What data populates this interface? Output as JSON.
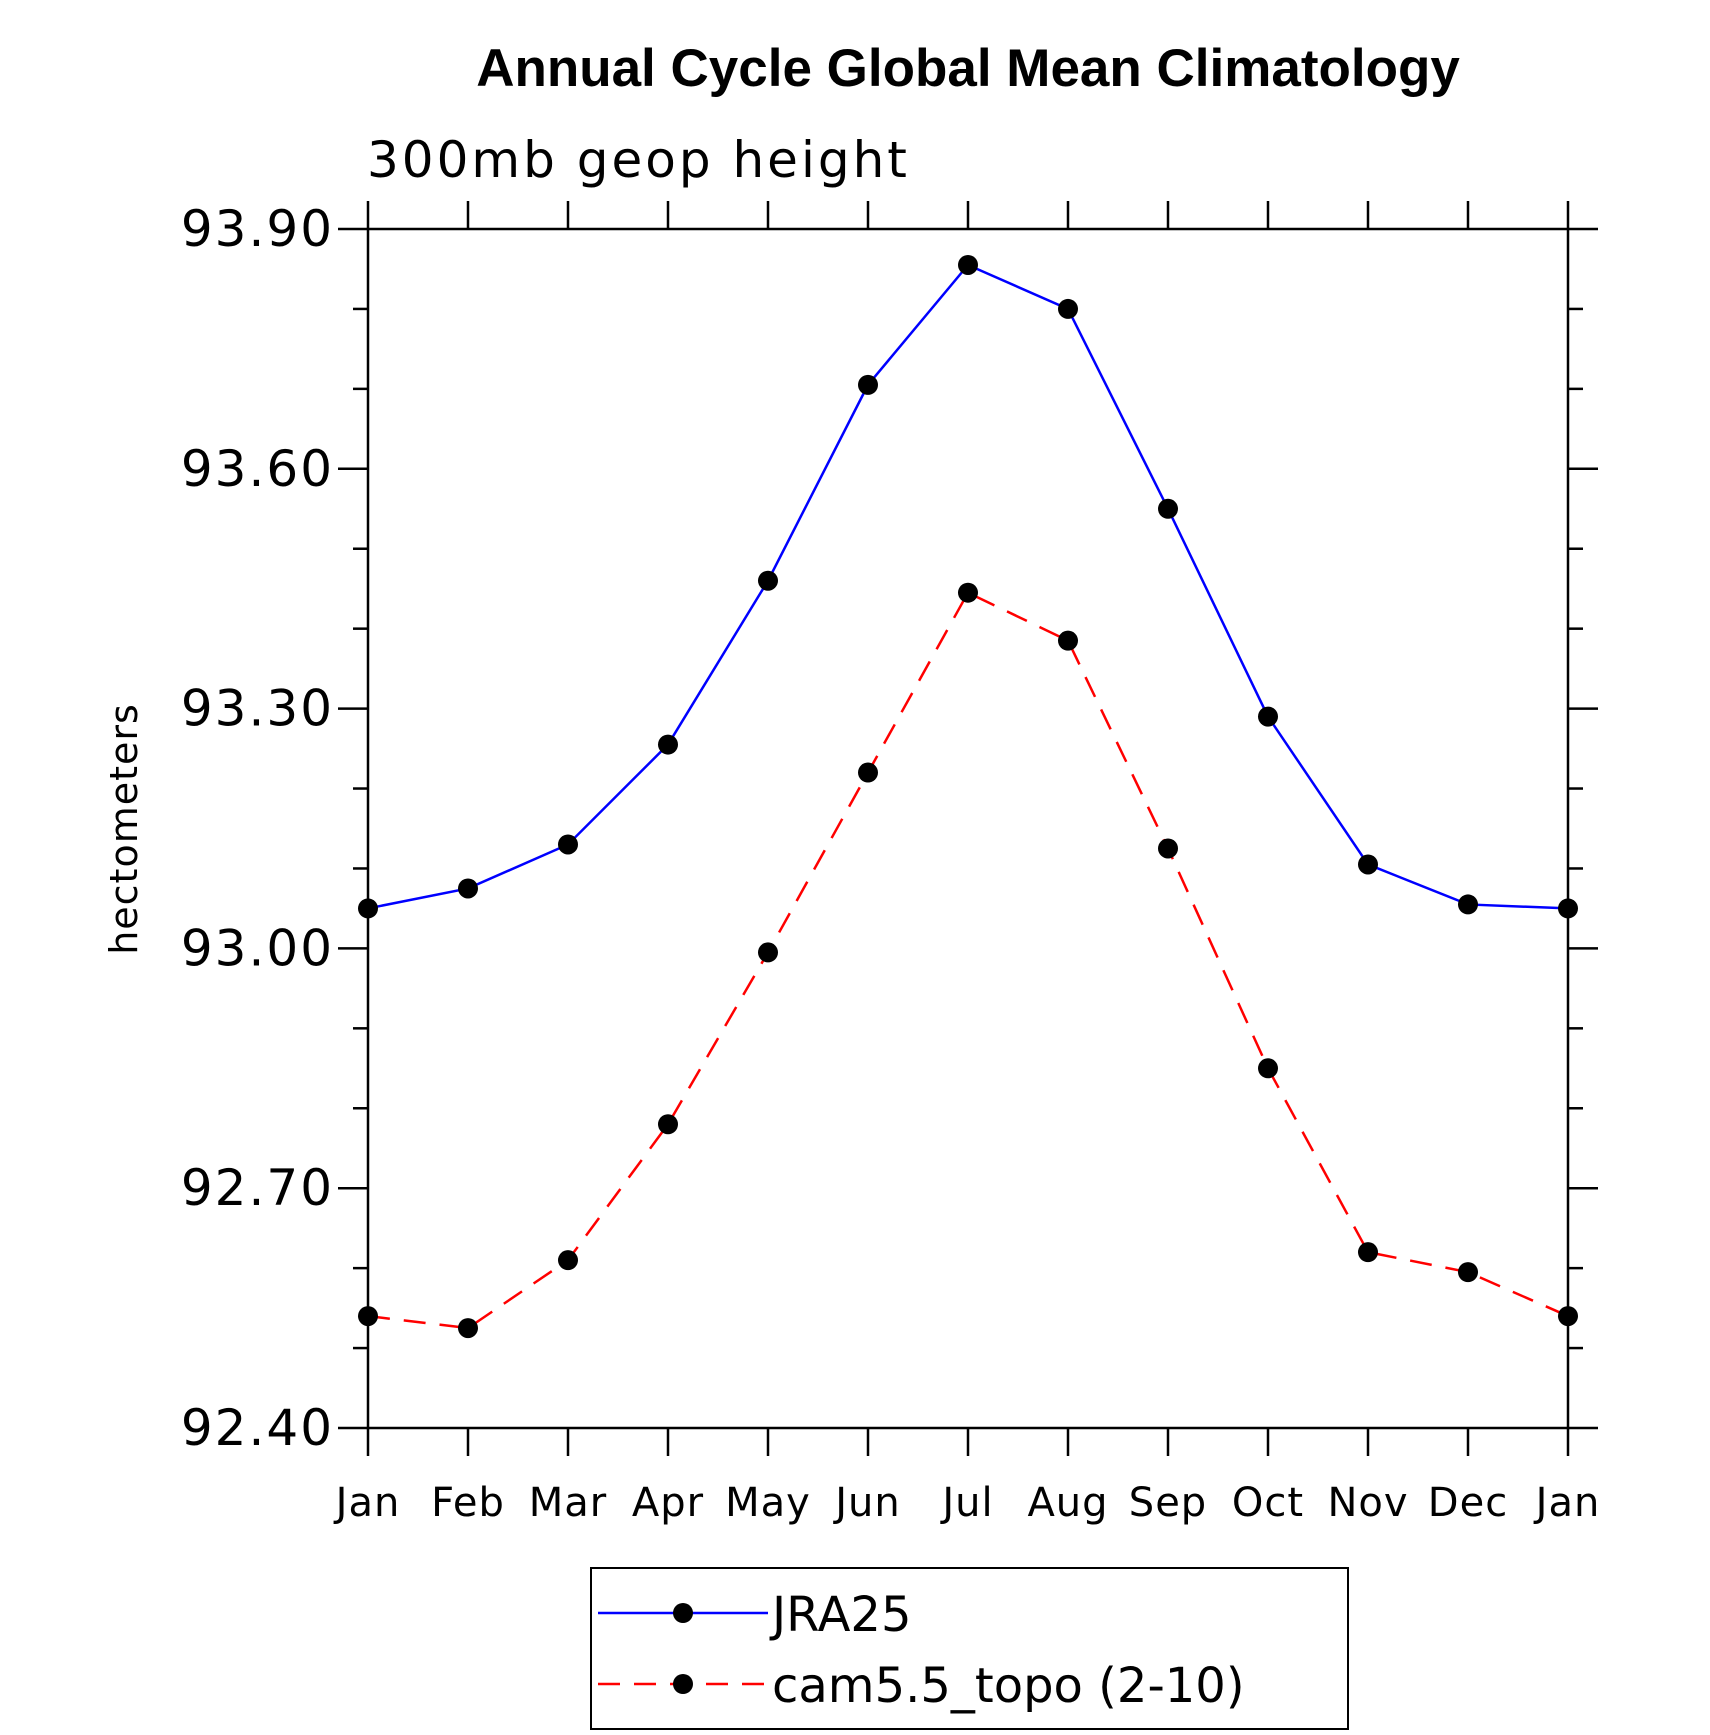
{
  "chart_data": {
    "type": "line",
    "title": "Annual Cycle Global Mean Climatology",
    "subtitle": "300mb geop height",
    "xlabel": "",
    "ylabel": "hectometers",
    "categories": [
      "Jan",
      "Feb",
      "Mar",
      "Apr",
      "May",
      "Jun",
      "Jul",
      "Aug",
      "Sep",
      "Oct",
      "Nov",
      "Dec",
      "Jan"
    ],
    "ylim": [
      92.4,
      93.9
    ],
    "yticks": [
      "93.90",
      "93.60",
      "93.30",
      "93.00",
      "92.70",
      "92.40"
    ],
    "ytick_values": [
      93.9,
      93.6,
      93.3,
      93.0,
      92.7,
      92.4
    ],
    "grid": false,
    "legend_position": "bottom-center",
    "series": [
      {
        "name": "JRA25",
        "color": "#0000ff",
        "line_style": "solid",
        "marker": "filled-circle",
        "values": [
          93.05,
          93.075,
          93.13,
          93.255,
          93.46,
          93.705,
          93.855,
          93.8,
          93.55,
          93.29,
          93.105,
          93.055,
          93.05
        ]
      },
      {
        "name": "cam5.5_topo (2-10)",
        "color": "#ff0000",
        "line_style": "dashed",
        "marker": "filled-circle",
        "values": [
          92.54,
          92.525,
          92.61,
          92.78,
          92.995,
          93.22,
          93.445,
          93.385,
          93.125,
          92.85,
          92.62,
          92.595,
          92.54
        ]
      }
    ]
  },
  "colors": {
    "axis": "#000000",
    "marker": "#000000",
    "background": "#ffffff"
  }
}
